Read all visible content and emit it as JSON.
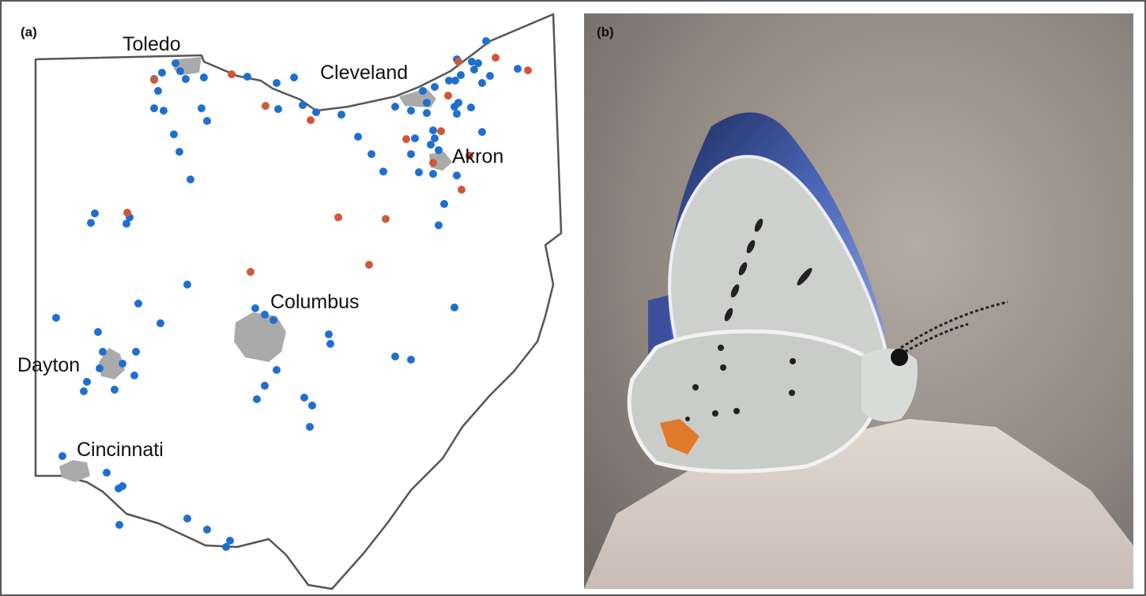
{
  "panel_a": {
    "label": "(a)",
    "cities": [
      "Toledo",
      "Cleveland",
      "Akron",
      "Columbus",
      "Dayton",
      "Cincinnati"
    ]
  },
  "panel_b": {
    "label": "(b)"
  }
}
